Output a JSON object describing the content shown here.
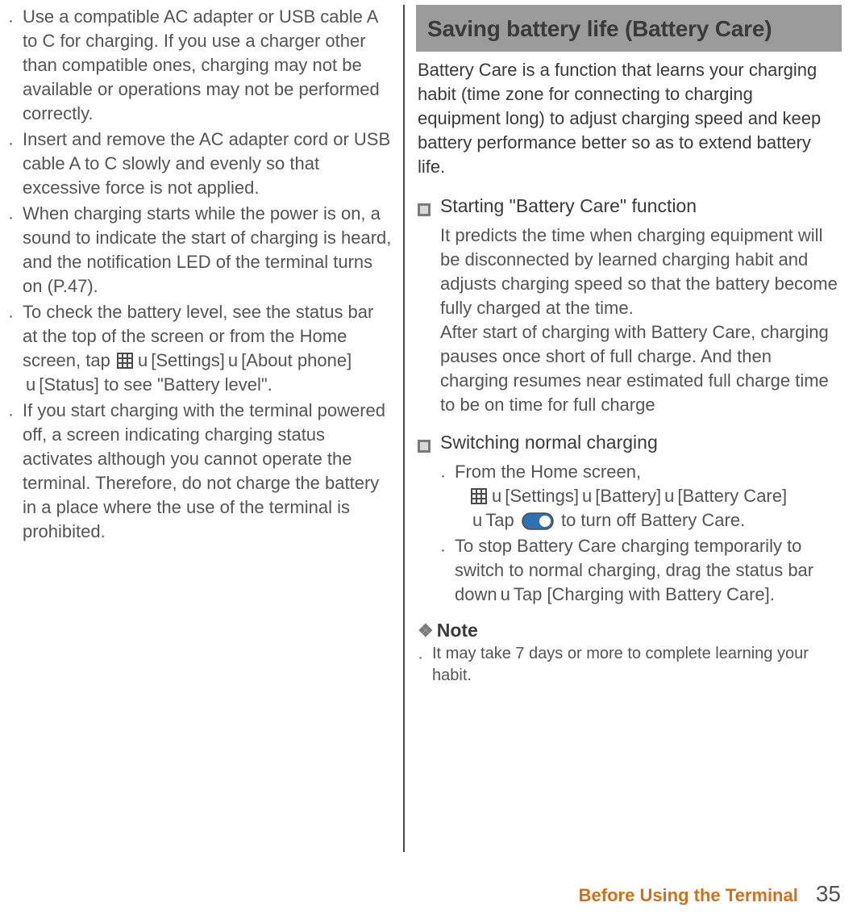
{
  "left_column": {
    "bullets": [
      "Use a compatible AC adapter or USB cable A to C for charging. If you use a charger other than compatible ones, charging may not be available or operations may not be performed correctly.",
      "Insert and remove the AC adapter cord or USB cable A to C slowly and evenly so that excessive force is not applied.",
      "When charging starts while the power is on, a sound to indicate the start of charging is heard, and the notification LED of the terminal turns on (P.47).",
      "__battery_check__",
      "If you start charging with the terminal powered off, a screen indicating charging status activates although you cannot operate the terminal. Therefore, do not charge the battery in a place where the use of the terminal is prohibited."
    ],
    "battery_check": {
      "pre": "To check the battery level, see the status bar at the top of the screen or from the Home screen, tap ",
      "settings": "[Settings]",
      "about": "[About phone]",
      "status": "[Status] to see \"Battery level\"."
    }
  },
  "right_column": {
    "header": "Saving battery life (Battery Care)",
    "intro": "Battery Care is a function that learns your charging habit (time zone for connecting to charging equipment long) to adjust charging speed and keep battery performance better so as to extend battery life.",
    "section1": {
      "title": "Starting \"Battery Care\" function",
      "body1": "It predicts the time when charging equipment will be disconnected by learned charging habit and adjusts charging speed so that the battery become fully charged at the time.",
      "body2": "After start of charging with Battery Care, charging pauses once short of full charge. And then charging resumes near estimated full charge time to be on time for full charge"
    },
    "section2": {
      "title": "Switching normal charging",
      "bullet1_pre": "From the Home screen,",
      "bullet1_settings": "[Settings]",
      "bullet1_battery": "[Battery]",
      "bullet1_bc": "[Battery Care]",
      "bullet1_tap": "Tap ",
      "bullet1_post": " to turn off Battery Care.",
      "bullet2_pre": "To stop Battery Care charging temporarily to switch to normal charging, drag the status bar down",
      "bullet2_post": "Tap [Charging with Battery Care]."
    },
    "note": {
      "label": "Note",
      "text": "It may take 7 days or more to complete learning your habit."
    }
  },
  "footer": {
    "section": "Before Using the Terminal",
    "page": "35"
  },
  "icons": {
    "grid_stroke": "#4a4a4a",
    "toggle_bg": "#2f6fb3",
    "toggle_knob": "#ffffff",
    "toggle_border": "#4a4a4a"
  }
}
